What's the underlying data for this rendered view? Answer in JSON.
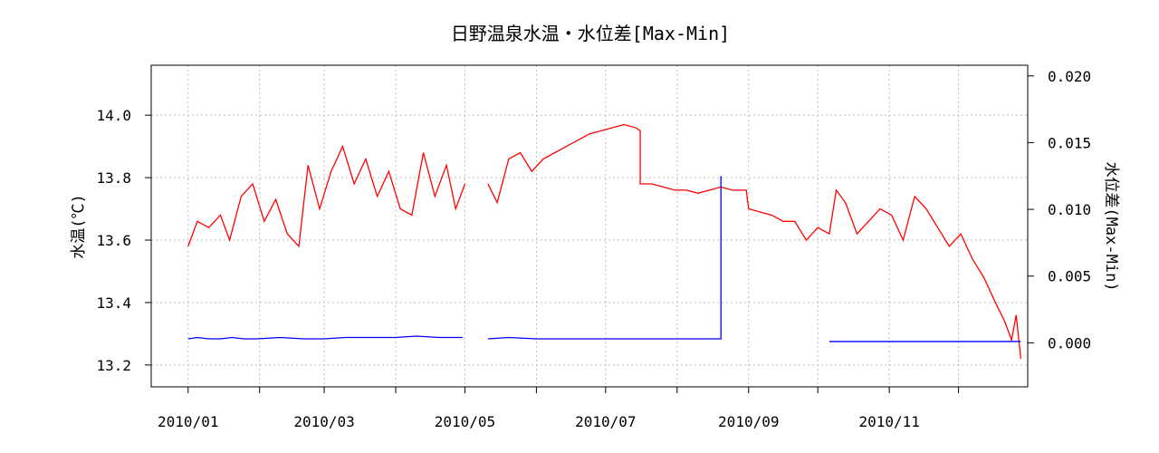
{
  "chart_data": {
    "type": "line",
    "title": "日野温泉水温・水位差[Max-Min]",
    "xlabel": "",
    "ylabel_left": "水温(℃)",
    "ylabel_right": "水位差(Max-Min)",
    "x_ticks": [
      "2010/01",
      "2010/02",
      "2010/03",
      "2010/04",
      "2010/05",
      "2010/06",
      "2010/07",
      "2010/08",
      "2010/09",
      "2010/10",
      "2010/11",
      "2010/12"
    ],
    "x_tick_labels_shown": [
      "2010/01",
      "",
      "2010/03",
      "",
      "2010/05",
      "",
      "2010/07",
      "",
      "2010/09",
      "",
      "2010/11",
      ""
    ],
    "xlim": [
      "2009-12-16",
      "2010-12-31"
    ],
    "ylim_left": [
      13.13,
      14.16
    ],
    "ylim_right": [
      -0.0033,
      0.0208
    ],
    "y_ticks_left": [
      13.2,
      13.4,
      13.6,
      13.8,
      14.0
    ],
    "y_tick_labels_left": [
      "13.2",
      "13.4",
      "13.6",
      "13.8",
      "14.0"
    ],
    "y_ticks_right": [
      0.0,
      0.005,
      0.01,
      0.015,
      0.02
    ],
    "y_tick_labels_right": [
      "0.000",
      "0.005",
      "0.010",
      "0.015",
      "0.020"
    ],
    "grid": true,
    "series": [
      {
        "axis": "left",
        "color": "#ff0000",
        "points": [
          [
            "2010-01-01",
            13.58
          ],
          [
            "2010-01-05",
            13.66
          ],
          [
            "2010-01-10",
            13.64
          ],
          [
            "2010-01-15",
            13.68
          ],
          [
            "2010-01-19",
            13.6
          ],
          [
            "2010-01-24",
            13.74
          ],
          [
            "2010-01-29",
            13.78
          ],
          [
            "2010-02-03",
            13.66
          ],
          [
            "2010-02-08",
            13.73
          ],
          [
            "2010-02-13",
            13.62
          ],
          [
            "2010-02-18",
            13.58
          ],
          [
            "2010-02-22",
            13.84
          ],
          [
            "2010-02-27",
            13.7
          ],
          [
            "2010-03-04",
            13.82
          ],
          [
            "2010-03-09",
            13.9
          ],
          [
            "2010-03-14",
            13.78
          ],
          [
            "2010-03-19",
            13.86
          ],
          [
            "2010-03-24",
            13.74
          ],
          [
            "2010-03-29",
            13.82
          ],
          [
            "2010-04-03",
            13.7
          ],
          [
            "2010-04-08",
            13.68
          ],
          [
            "2010-04-13",
            13.88
          ],
          [
            "2010-04-18",
            13.74
          ],
          [
            "2010-04-23",
            13.84
          ],
          [
            "2010-04-27",
            13.7
          ],
          [
            "2010-05-01",
            13.78
          ],
          [
            "2010-05-10",
            null
          ],
          [
            "2010-05-11",
            13.78
          ],
          [
            "2010-05-15",
            13.72
          ],
          [
            "2010-05-20",
            13.86
          ],
          [
            "2010-05-25",
            13.88
          ],
          [
            "2010-05-30",
            13.82
          ],
          [
            "2010-06-04",
            13.86
          ],
          [
            "2010-06-09",
            13.88
          ],
          [
            "2010-06-14",
            13.9
          ],
          [
            "2010-06-19",
            13.92
          ],
          [
            "2010-06-24",
            13.94
          ],
          [
            "2010-06-29",
            13.95
          ],
          [
            "2010-07-04",
            13.96
          ],
          [
            "2010-07-09",
            13.97
          ],
          [
            "2010-07-14",
            13.96
          ],
          [
            "2010-07-16",
            13.95
          ],
          [
            "2010-07-16",
            13.78
          ],
          [
            "2010-07-21",
            13.78
          ],
          [
            "2010-07-26",
            13.77
          ],
          [
            "2010-07-31",
            13.76
          ],
          [
            "2010-08-05",
            13.76
          ],
          [
            "2010-08-10",
            13.75
          ],
          [
            "2010-08-15",
            13.76
          ],
          [
            "2010-08-20",
            13.77
          ],
          [
            "2010-08-25",
            13.76
          ],
          [
            "2010-08-31",
            13.76
          ],
          [
            "2010-09-01",
            13.7
          ],
          [
            "2010-09-06",
            13.69
          ],
          [
            "2010-09-11",
            13.68
          ],
          [
            "2010-09-16",
            13.66
          ],
          [
            "2010-09-21",
            13.66
          ],
          [
            "2010-09-26",
            13.6
          ],
          [
            "2010-10-01",
            13.64
          ],
          [
            "2010-10-06",
            13.62
          ],
          [
            "2010-10-09",
            13.76
          ],
          [
            "2010-10-13",
            13.72
          ],
          [
            "2010-10-18",
            13.62
          ],
          [
            "2010-10-23",
            13.66
          ],
          [
            "2010-10-28",
            13.7
          ],
          [
            "2010-11-02",
            13.68
          ],
          [
            "2010-11-07",
            13.6
          ],
          [
            "2010-11-12",
            13.74
          ],
          [
            "2010-11-17",
            13.7
          ],
          [
            "2010-11-22",
            13.64
          ],
          [
            "2010-11-27",
            13.58
          ],
          [
            "2010-12-02",
            13.62
          ],
          [
            "2010-12-07",
            13.54
          ],
          [
            "2010-12-12",
            13.48
          ],
          [
            "2010-12-17",
            13.4
          ],
          [
            "2010-12-21",
            13.34
          ],
          [
            "2010-12-24",
            13.28
          ],
          [
            "2010-12-26",
            13.36
          ],
          [
            "2010-12-28",
            13.22
          ]
        ]
      },
      {
        "axis": "right",
        "color": "#0000ff",
        "points": [
          [
            "2010-01-01",
            0.0003
          ],
          [
            "2010-01-05",
            0.0004
          ],
          [
            "2010-01-10",
            0.0003
          ],
          [
            "2010-01-15",
            0.0003
          ],
          [
            "2010-01-20",
            0.0004
          ],
          [
            "2010-01-25",
            0.0003
          ],
          [
            "2010-01-31",
            0.0003
          ],
          [
            "2010-02-10",
            0.0004
          ],
          [
            "2010-02-20",
            0.0003
          ],
          [
            "2010-03-01",
            0.0003
          ],
          [
            "2010-03-10",
            0.0004
          ],
          [
            "2010-03-20",
            0.0004
          ],
          [
            "2010-04-01",
            0.0004
          ],
          [
            "2010-04-10",
            0.0005
          ],
          [
            "2010-04-20",
            0.0004
          ],
          [
            "2010-04-30",
            0.0004
          ],
          [
            "2010-05-10",
            null
          ],
          [
            "2010-05-11",
            0.0003
          ],
          [
            "2010-05-20",
            0.0004
          ],
          [
            "2010-06-01",
            0.0003
          ],
          [
            "2010-06-15",
            0.0003
          ],
          [
            "2010-07-01",
            0.0003
          ],
          [
            "2010-07-15",
            0.0003
          ],
          [
            "2010-08-01",
            0.0003
          ],
          [
            "2010-08-15",
            0.0003
          ],
          [
            "2010-08-20",
            0.0003
          ],
          [
            "2010-08-20",
            0.0125
          ],
          [
            "2010-08-20",
            0.0003
          ],
          [
            "2010-08-21",
            null
          ],
          [
            "2010-10-06",
            0.0001
          ],
          [
            "2010-10-07",
            0.0001
          ],
          [
            "2010-11-01",
            0.0001
          ],
          [
            "2010-12-01",
            0.0001
          ],
          [
            "2010-12-28",
            0.0001
          ]
        ]
      }
    ]
  }
}
